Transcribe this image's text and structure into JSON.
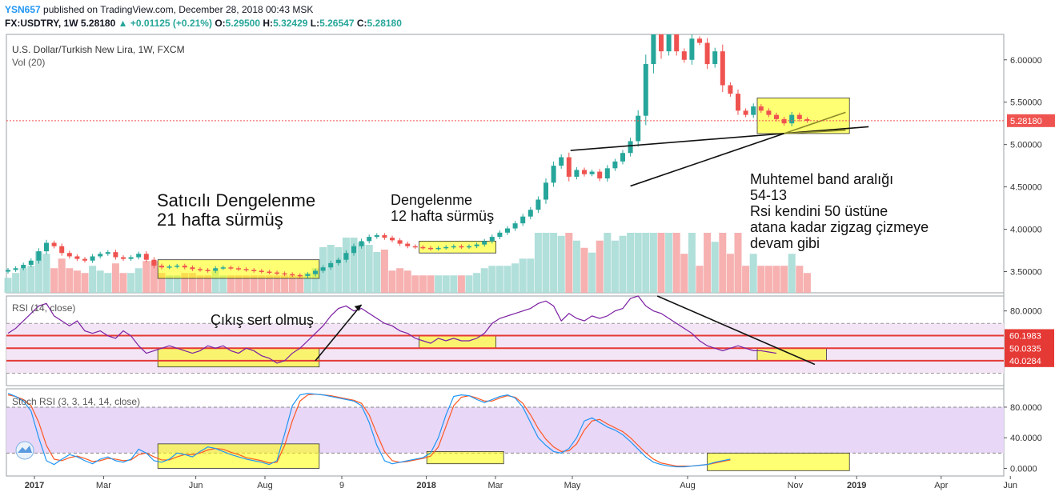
{
  "header": {
    "username": "YSN657",
    "published_text": "published on TradingView.com, December 28, 2018 00:43 MSK",
    "symbol_line": "FX:USDTRY, 1W",
    "last": "5.28180",
    "change": "+0.01125 (+0.21%)",
    "o_label": "O:",
    "o_value": "5.29500",
    "h_label": "H:",
    "h_value": "5.32429",
    "l_label": "L:",
    "l_value": "5.26547",
    "c_label": "C:",
    "c_value": "5.28180"
  },
  "colors": {
    "up": "#26a69a",
    "down": "#ef5350",
    "rsi_line": "#7b1fa2",
    "rsi_band": "#f3e5f5",
    "stoch_k": "#2196f3",
    "stoch_d": "#ff5722",
    "highlight": "#ffff00",
    "level_line": "#e53935"
  },
  "chart_data": [
    {
      "type": "candlestick",
      "title": "U.S. Dollar/Turkish New Lira, 1W, FXCM",
      "volume_label": "Vol (20)",
      "y_ticks": [
        "6.00000",
        "5.50000",
        "5.00000",
        "4.50000",
        "4.00000",
        "3.50000"
      ],
      "y_tick_values": [
        6.0,
        5.5,
        5.0,
        4.5,
        4.0,
        3.5
      ],
      "ylim": [
        3.25,
        6.3
      ],
      "last_price_label": "5.28180",
      "last_price": 5.2818,
      "x_ticks": [
        "2017",
        "Mar",
        "Jun",
        "Aug",
        "9",
        "2018",
        "Mar",
        "May",
        "Aug",
        "Nov",
        "2019",
        "Apr",
        "Jun"
      ],
      "x_tick_weeks": [
        0,
        9,
        21,
        30,
        40,
        51,
        60,
        70,
        85,
        99,
        107,
        118,
        127
      ],
      "closes": [
        3.52,
        3.54,
        3.58,
        3.63,
        3.74,
        3.84,
        3.8,
        3.72,
        3.68,
        3.65,
        3.63,
        3.68,
        3.71,
        3.73,
        3.67,
        3.65,
        3.67,
        3.71,
        3.64,
        3.57,
        3.55,
        3.56,
        3.57,
        3.55,
        3.53,
        3.52,
        3.51,
        3.54,
        3.55,
        3.54,
        3.53,
        3.52,
        3.51,
        3.5,
        3.49,
        3.48,
        3.47,
        3.46,
        3.45,
        3.47,
        3.51,
        3.55,
        3.6,
        3.64,
        3.72,
        3.8,
        3.86,
        3.91,
        3.93,
        3.9,
        3.87,
        3.83,
        3.8,
        3.79,
        3.78,
        3.77,
        3.78,
        3.79,
        3.8,
        3.79,
        3.8,
        3.82,
        3.86,
        3.91,
        3.96,
        4.01,
        4.07,
        4.15,
        4.23,
        4.35,
        4.55,
        4.75,
        4.85,
        4.62,
        4.7,
        4.65,
        4.68,
        4.6,
        4.72,
        4.8,
        4.9,
        5.04,
        5.34,
        5.95,
        6.55,
        6.1,
        6.3,
        6.1,
        6.0,
        6.25,
        6.2,
        5.95,
        6.1,
        5.7,
        5.6,
        5.4,
        5.35,
        5.45,
        5.4,
        5.35,
        5.3,
        5.25,
        5.35,
        5.3,
        5.28
      ],
      "annotations": [
        "Satıcılı Dengelenme",
        "21 hafta sürmüş",
        "Dengelenme",
        "12 hafta sürmüş",
        "Muhtemel band aralığı",
        "54-13",
        "Rsi kendini 50 üstüne",
        "atana kadar zigzag çizmeye",
        "devam gibi"
      ]
    },
    {
      "type": "line",
      "title": "RSI (14, close)",
      "y_ticks": [
        "80.0000"
      ],
      "y_tick_values": [
        80
      ],
      "ylim": [
        20,
        92
      ],
      "levels": [
        {
          "label": "60.1983",
          "value": 60.1983
        },
        {
          "label": "50.0335",
          "value": 50.0335
        },
        {
          "label": "40.0284",
          "value": 40.0284
        }
      ],
      "band": [
        30,
        70
      ],
      "annotation": "Çıkış sert olmuş",
      "values": [
        62,
        66,
        72,
        78,
        84,
        86,
        76,
        72,
        68,
        72,
        64,
        62,
        64,
        60,
        58,
        64,
        60,
        52,
        46,
        48,
        50,
        52,
        50,
        48,
        46,
        48,
        52,
        50,
        52,
        48,
        46,
        50,
        48,
        44,
        42,
        38,
        40,
        46,
        50,
        56,
        62,
        68,
        76,
        82,
        84,
        80,
        82,
        78,
        74,
        70,
        68,
        64,
        62,
        58,
        56,
        54,
        58,
        56,
        58,
        56,
        56,
        58,
        62,
        70,
        74,
        76,
        78,
        80,
        82,
        86,
        88,
        84,
        72,
        78,
        74,
        72,
        76,
        74,
        76,
        80,
        82,
        90,
        92,
        84,
        80,
        78,
        74,
        70,
        66,
        62,
        56,
        52,
        50,
        48,
        50,
        52,
        50,
        48,
        48,
        47,
        46
      ],
      "values_start_week": 0
    },
    {
      "type": "line",
      "title": "Stoch RSI (3, 3, 14, 14, close)",
      "y_ticks": [
        "80.0000",
        "40.0000",
        "0.0000"
      ],
      "y_tick_values": [
        80,
        40,
        0
      ],
      "ylim": [
        -10,
        104
      ],
      "band": [
        20,
        80
      ],
      "series": [
        {
          "values": [
            98,
            94,
            88,
            75,
            40,
            10,
            5,
            12,
            18,
            15,
            10,
            6,
            12,
            15,
            10,
            8,
            12,
            25,
            20,
            10,
            8,
            12,
            20,
            18,
            15,
            22,
            28,
            26,
            22,
            18,
            15,
            12,
            10,
            8,
            5,
            10,
            45,
            82,
            96,
            98,
            97,
            96,
            94,
            92,
            90,
            88,
            82,
            60,
            30,
            10,
            6,
            8,
            10,
            12,
            14,
            20,
            40,
            70,
            94,
            96,
            95,
            90,
            86,
            90,
            94,
            96,
            92,
            80,
            60,
            40,
            30,
            22,
            20,
            26,
            40,
            62,
            66,
            60,
            54,
            50,
            44,
            35,
            25,
            15,
            8,
            5,
            3,
            2,
            2,
            3,
            4,
            5,
            8,
            10,
            12
          ]
        },
        {
          "values": [
            96,
            94,
            90,
            82,
            60,
            30,
            12,
            10,
            14,
            16,
            13,
            9,
            10,
            13,
            12,
            10,
            11,
            18,
            20,
            15,
            11,
            11,
            15,
            18,
            18,
            20,
            24,
            26,
            25,
            21,
            18,
            14,
            12,
            10,
            7,
            8,
            30,
            62,
            88,
            96,
            97,
            96,
            95,
            93,
            91,
            89,
            85,
            70,
            45,
            22,
            10,
            8,
            9,
            11,
            13,
            16,
            28,
            55,
            82,
            93,
            95,
            92,
            88,
            88,
            92,
            95,
            93,
            85,
            70,
            52,
            38,
            28,
            22,
            23,
            32,
            50,
            62,
            64,
            58,
            53,
            48,
            40,
            30,
            20,
            12,
            7,
            5,
            3,
            3,
            3,
            4,
            5,
            7,
            9,
            11
          ]
        }
      ],
      "series_start_week": 0
    }
  ]
}
